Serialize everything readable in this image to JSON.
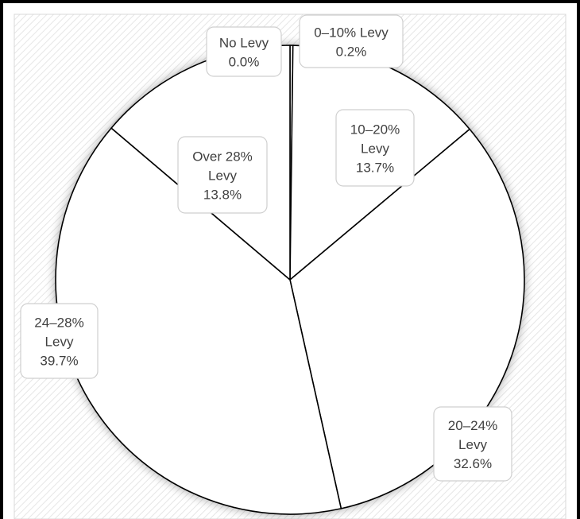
{
  "chart_data": {
    "type": "pie",
    "title": "",
    "series": [
      {
        "values": [
          {
            "category": "No Levy",
            "lines": [
              "No Levy"
            ],
            "percent": 0.0,
            "percent_label": "0.0%"
          },
          {
            "category": "0–10% Levy",
            "lines": [
              "0–10% Levy"
            ],
            "percent": 0.2,
            "percent_label": "0.2%"
          },
          {
            "category": "10–20% Levy",
            "lines": [
              "10–20%",
              "Levy"
            ],
            "percent": 13.7,
            "percent_label": "13.7%"
          },
          {
            "category": "20–24% Levy",
            "lines": [
              "20–24%",
              "Levy"
            ],
            "percent": 32.6,
            "percent_label": "32.6%"
          },
          {
            "category": "24–28% Levy",
            "lines": [
              "24–28%",
              "Levy"
            ],
            "percent": 39.7,
            "percent_label": "39.7%"
          },
          {
            "category": "Over 28% Levy",
            "lines": [
              "Over 28%",
              "Levy"
            ],
            "percent": 13.8,
            "percent_label": "13.8%"
          }
        ]
      }
    ],
    "legend": "none",
    "slice_fill": "#ffffff",
    "slice_stroke": "#000000",
    "plot_background": "hatched light gray"
  }
}
